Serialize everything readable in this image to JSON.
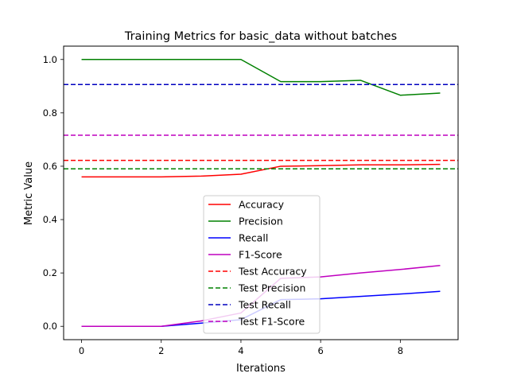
{
  "chart_data": {
    "type": "line",
    "title": "Training Metrics for basic_data without batches",
    "xlabel": "Iterations",
    "ylabel": "Metric Value",
    "xlim": [
      -0.45,
      9.45
    ],
    "ylim": [
      -0.05,
      1.05
    ],
    "xticks": [
      0,
      2,
      4,
      6,
      8
    ],
    "xtick_labels": [
      "0",
      "2",
      "4",
      "6",
      "8"
    ],
    "yticks": [
      0.0,
      0.2,
      0.4,
      0.6,
      0.8,
      1.0
    ],
    "ytick_labels": [
      "0.0",
      "0.2",
      "0.4",
      "0.6",
      "0.8",
      "1.0"
    ],
    "grid": false,
    "legend_position": "lower-center",
    "x": [
      0,
      1,
      2,
      3,
      4,
      5,
      6,
      7,
      8,
      9
    ],
    "series": [
      {
        "name": "Accuracy",
        "color": "#ff0000",
        "style": "solid",
        "values": [
          0.56,
          0.56,
          0.56,
          0.563,
          0.57,
          0.6,
          0.602,
          0.605,
          0.605,
          0.607
        ]
      },
      {
        "name": "Precision",
        "color": "#008000",
        "style": "solid",
        "values": [
          1.0,
          1.0,
          1.0,
          1.0,
          1.0,
          0.917,
          0.917,
          0.922,
          0.866,
          0.874
        ]
      },
      {
        "name": "Recall",
        "color": "#0000ff",
        "style": "solid",
        "values": [
          0.0,
          0.0,
          0.0,
          0.012,
          0.025,
          0.1,
          0.103,
          0.112,
          0.121,
          0.131
        ]
      },
      {
        "name": "F1-Score",
        "color": "#bf00bf",
        "style": "solid",
        "values": [
          0.0,
          0.0,
          0.0,
          0.02,
          0.05,
          0.18,
          0.185,
          0.2,
          0.213,
          0.228
        ]
      },
      {
        "name": "Test Accuracy",
        "color": "#ff0000",
        "style": "dashed",
        "constant": 0.622
      },
      {
        "name": "Test Precision",
        "color": "#008000",
        "style": "dashed",
        "constant": 0.59
      },
      {
        "name": "Test Recall",
        "color": "#0000bf",
        "style": "dashed",
        "constant": 0.906
      },
      {
        "name": "Test F1-Score",
        "color": "#bf00bf",
        "style": "dashed",
        "constant": 0.716
      }
    ]
  }
}
